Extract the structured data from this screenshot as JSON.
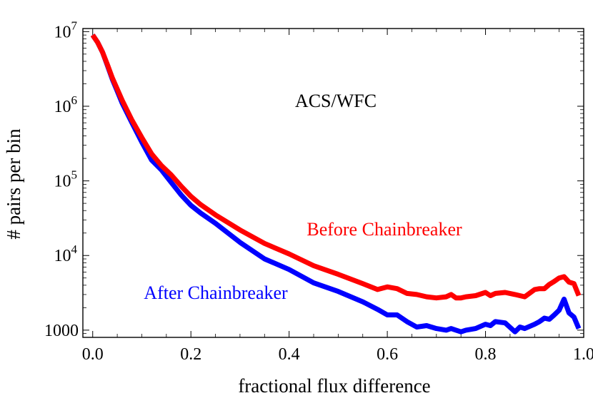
{
  "chart_data": {
    "type": "line",
    "title": "",
    "annotation": "ACS/WFC",
    "xlabel": "fractional flux difference",
    "ylabel": "# pairs per bin",
    "xlim": [
      -0.02,
      1.0
    ],
    "ylim": [
      800,
      11000000
    ],
    "yscale": "log",
    "grid": false,
    "x_ticks": [
      {
        "value": 0.0,
        "label": "0.0"
      },
      {
        "value": 0.2,
        "label": "0.2"
      },
      {
        "value": 0.4,
        "label": "0.4"
      },
      {
        "value": 0.6,
        "label": "0.6"
      },
      {
        "value": 0.8,
        "label": "0.8"
      },
      {
        "value": 1.0,
        "label": "1.0"
      }
    ],
    "y_ticks": [
      {
        "value": 1000,
        "base": "1000",
        "exp": ""
      },
      {
        "value": 10000,
        "base": "10",
        "exp": "4"
      },
      {
        "value": 100000,
        "base": "10",
        "exp": "5"
      },
      {
        "value": 1000000,
        "base": "10",
        "exp": "6"
      },
      {
        "value": 10000000,
        "base": "10",
        "exp": "7"
      }
    ],
    "series": [
      {
        "name": "Before Chainbreaker",
        "color": "#ff0000",
        "x": [
          0.0,
          0.01,
          0.02,
          0.03,
          0.04,
          0.05,
          0.06,
          0.08,
          0.1,
          0.12,
          0.14,
          0.16,
          0.18,
          0.2,
          0.22,
          0.25,
          0.3,
          0.35,
          0.4,
          0.45,
          0.5,
          0.55,
          0.58,
          0.6,
          0.62,
          0.64,
          0.66,
          0.68,
          0.7,
          0.72,
          0.73,
          0.74,
          0.75,
          0.76,
          0.78,
          0.8,
          0.81,
          0.82,
          0.84,
          0.86,
          0.88,
          0.9,
          0.91,
          0.92,
          0.93,
          0.94,
          0.95,
          0.96,
          0.97,
          0.98,
          0.99
        ],
        "y": [
          9000000,
          7200000,
          5300000,
          3600000,
          2400000,
          1700000,
          1200000,
          650000,
          380000,
          230000,
          160000,
          120000,
          85000,
          62000,
          48000,
          35000,
          22000,
          14500,
          10500,
          7300,
          5600,
          4200,
          3500,
          3800,
          3600,
          3100,
          3000,
          2800,
          2700,
          2800,
          3000,
          2700,
          2700,
          2800,
          2900,
          3200,
          2900,
          3100,
          3200,
          3000,
          2800,
          3500,
          3600,
          3600,
          4100,
          4500,
          5000,
          5200,
          4400,
          4200,
          2900
        ]
      },
      {
        "name": "After Chainbreaker",
        "color": "#0000ff",
        "x": [
          0.0,
          0.01,
          0.02,
          0.03,
          0.04,
          0.05,
          0.06,
          0.08,
          0.1,
          0.12,
          0.14,
          0.16,
          0.18,
          0.2,
          0.22,
          0.25,
          0.3,
          0.35,
          0.4,
          0.45,
          0.5,
          0.55,
          0.58,
          0.6,
          0.62,
          0.64,
          0.66,
          0.68,
          0.7,
          0.72,
          0.73,
          0.74,
          0.75,
          0.76,
          0.78,
          0.8,
          0.81,
          0.82,
          0.84,
          0.86,
          0.87,
          0.88,
          0.9,
          0.91,
          0.92,
          0.93,
          0.94,
          0.95,
          0.96,
          0.97,
          0.98,
          0.99
        ],
        "y": [
          9000000,
          7200000,
          5300000,
          3500000,
          2300000,
          1600000,
          1100000,
          600000,
          330000,
          190000,
          140000,
          95000,
          65000,
          47000,
          37000,
          27000,
          15000,
          9000,
          6500,
          4300,
          3300,
          2400,
          1900,
          1600,
          1600,
          1300,
          1100,
          1150,
          1050,
          1000,
          1050,
          1000,
          950,
          1000,
          1050,
          1200,
          1150,
          1300,
          1250,
          950,
          1100,
          1050,
          1200,
          1300,
          1450,
          1400,
          1600,
          1850,
          2600,
          1700,
          1500,
          1050
        ]
      }
    ],
    "series_labels": [
      {
        "text": "Before Chainbreaker",
        "color": "#ff0000"
      },
      {
        "text": "After Chainbreaker",
        "color": "#0000ff"
      }
    ]
  }
}
